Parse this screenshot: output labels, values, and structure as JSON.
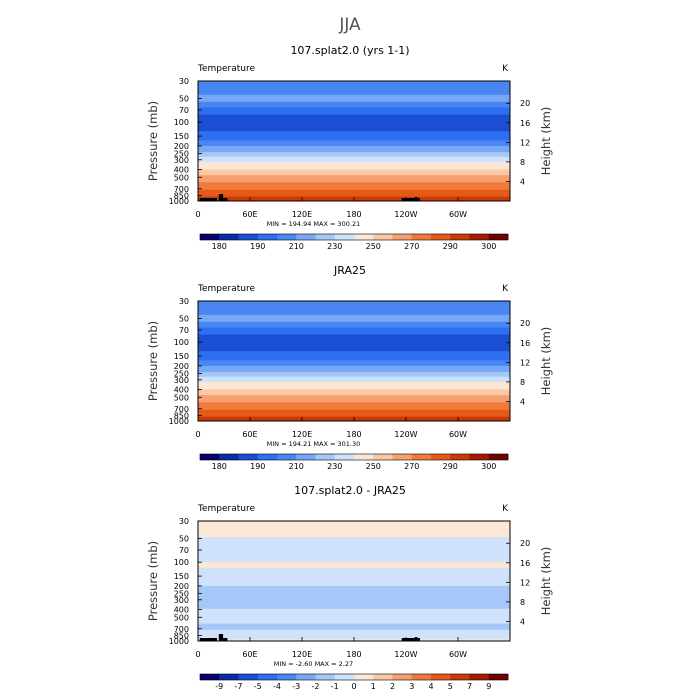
{
  "figure_title": "JJA",
  "chart_data": [
    {
      "type": "heatmap",
      "title": "107.splat2.0 (yrs 1-1)",
      "variable": "Temperature",
      "units": "K",
      "ylabel": "Pressure (mb)",
      "y2label": "Height (km)",
      "stats": "MIN = 194.94   MAX = 300.21",
      "x_ticks": [
        "0",
        "60E",
        "120E",
        "180",
        "120W",
        "60W"
      ],
      "pressure_ticks": [
        "30",
        "50",
        "70",
        "100",
        "150",
        "200",
        "250",
        "300",
        "400",
        "500",
        "700",
        "850",
        "1000"
      ],
      "height_ticks": [
        "20",
        "16",
        "12",
        "8",
        "4"
      ],
      "ylim_mb": [
        1000,
        30
      ],
      "colorbar": {
        "levels": [
          "180",
          "190",
          "210",
          "230",
          "250",
          "270",
          "290",
          "300"
        ],
        "colors": [
          "#08006e",
          "#0a2aa6",
          "#1a4fd3",
          "#2e6ef0",
          "#4a86f2",
          "#78a8f5",
          "#a6c8f8",
          "#cfe2fb",
          "#fce6d4",
          "#f9c8a4",
          "#f6a070",
          "#f07a3a",
          "#e55a18",
          "#c93a08",
          "#a01c02",
          "#6e0400"
        ]
      },
      "field_levels": [
        {
          "p_mb": 30,
          "class": 4
        },
        {
          "p_mb": 40,
          "class": 4
        },
        {
          "p_mb": 45,
          "class": 5
        },
        {
          "p_mb": 55,
          "class": 4
        },
        {
          "p_mb": 65,
          "class": 3
        },
        {
          "p_mb": 80,
          "class": 2
        },
        {
          "p_mb": 110,
          "class": 2
        },
        {
          "p_mb": 130,
          "class": 3
        },
        {
          "p_mb": 170,
          "class": 4
        },
        {
          "p_mb": 200,
          "class": 5
        },
        {
          "p_mb": 240,
          "class": 6
        },
        {
          "p_mb": 275,
          "class": 7
        },
        {
          "p_mb": 320,
          "class": 8
        },
        {
          "p_mb": 400,
          "class": 9
        },
        {
          "p_mb": 470,
          "class": 10
        },
        {
          "p_mb": 580,
          "class": 11
        },
        {
          "p_mb": 720,
          "class": 12
        },
        {
          "p_mb": 880,
          "class": 13
        },
        {
          "p_mb": 1000,
          "class": 14
        }
      ]
    },
    {
      "type": "heatmap",
      "title": "JRA25",
      "variable": "Temperature",
      "units": "K",
      "ylabel": "Pressure (mb)",
      "y2label": "Height (km)",
      "stats": "MIN = 194.21   MAX = 301.30",
      "x_ticks": [
        "0",
        "60E",
        "120E",
        "180",
        "120W",
        "60W"
      ],
      "pressure_ticks": [
        "30",
        "50",
        "70",
        "100",
        "150",
        "200",
        "250",
        "300",
        "400",
        "500",
        "700",
        "850",
        "1000"
      ],
      "height_ticks": [
        "20",
        "16",
        "12",
        "8",
        "4"
      ],
      "ylim_mb": [
        1000,
        30
      ],
      "colorbar": {
        "levels": [
          "180",
          "190",
          "210",
          "230",
          "250",
          "270",
          "290",
          "300"
        ],
        "colors": [
          "#08006e",
          "#0a2aa6",
          "#1a4fd3",
          "#2e6ef0",
          "#4a86f2",
          "#78a8f5",
          "#a6c8f8",
          "#cfe2fb",
          "#fce6d4",
          "#f9c8a4",
          "#f6a070",
          "#f07a3a",
          "#e55a18",
          "#c93a08",
          "#a01c02",
          "#6e0400"
        ]
      },
      "field_levels": [
        {
          "p_mb": 30,
          "class": 4
        },
        {
          "p_mb": 40,
          "class": 4
        },
        {
          "p_mb": 45,
          "class": 5
        },
        {
          "p_mb": 55,
          "class": 4
        },
        {
          "p_mb": 65,
          "class": 3
        },
        {
          "p_mb": 80,
          "class": 2
        },
        {
          "p_mb": 110,
          "class": 2
        },
        {
          "p_mb": 130,
          "class": 3
        },
        {
          "p_mb": 170,
          "class": 4
        },
        {
          "p_mb": 200,
          "class": 5
        },
        {
          "p_mb": 240,
          "class": 6
        },
        {
          "p_mb": 275,
          "class": 7
        },
        {
          "p_mb": 320,
          "class": 8
        },
        {
          "p_mb": 400,
          "class": 9
        },
        {
          "p_mb": 470,
          "class": 10
        },
        {
          "p_mb": 580,
          "class": 11
        },
        {
          "p_mb": 720,
          "class": 12
        },
        {
          "p_mb": 880,
          "class": 13
        },
        {
          "p_mb": 1000,
          "class": 14
        }
      ]
    },
    {
      "type": "heatmap",
      "title": "107.splat2.0 - JRA25",
      "variable": "Temperature",
      "units": "K",
      "ylabel": "Pressure (mb)",
      "y2label": "Height (km)",
      "stats": "MIN = -2.60   MAX =   2.27",
      "x_ticks": [
        "0",
        "60E",
        "120E",
        "180",
        "120W",
        "60W"
      ],
      "pressure_ticks": [
        "30",
        "50",
        "70",
        "100",
        "150",
        "200",
        "250",
        "300",
        "400",
        "500",
        "700",
        "850",
        "1000"
      ],
      "height_ticks": [
        "20",
        "16",
        "12",
        "8",
        "4"
      ],
      "ylim_mb": [
        1000,
        30
      ],
      "colorbar": {
        "levels": [
          "-9",
          "-7",
          "-5",
          "-4",
          "-3",
          "-2",
          "-1",
          "0",
          "1",
          "2",
          "3",
          "4",
          "5",
          "7",
          "9"
        ],
        "colors": [
          "#08006e",
          "#0a2aa6",
          "#1a4fd3",
          "#2e6ef0",
          "#4a86f2",
          "#78a8f5",
          "#a6c8f8",
          "#cfe2fb",
          "#fce6d4",
          "#f9c8a4",
          "#f6a070",
          "#f07a3a",
          "#e55a18",
          "#c93a08",
          "#a01c02",
          "#6e0400"
        ]
      },
      "field_levels": [
        {
          "p_mb": 30,
          "class": 8
        },
        {
          "p_mb": 42,
          "class": 8
        },
        {
          "p_mb": 48,
          "class": 7
        },
        {
          "p_mb": 85,
          "class": 7
        },
        {
          "p_mb": 100,
          "class": 8
        },
        {
          "p_mb": 118,
          "class": 7
        },
        {
          "p_mb": 200,
          "class": 6
        },
        {
          "p_mb": 330,
          "class": 6
        },
        {
          "p_mb": 390,
          "class": 7
        },
        {
          "p_mb": 600,
          "class": 6
        },
        {
          "p_mb": 720,
          "class": 7
        },
        {
          "p_mb": 900,
          "class": 7
        },
        {
          "p_mb": 950,
          "class": 8
        },
        {
          "p_mb": 1000,
          "class": 8
        }
      ]
    }
  ]
}
